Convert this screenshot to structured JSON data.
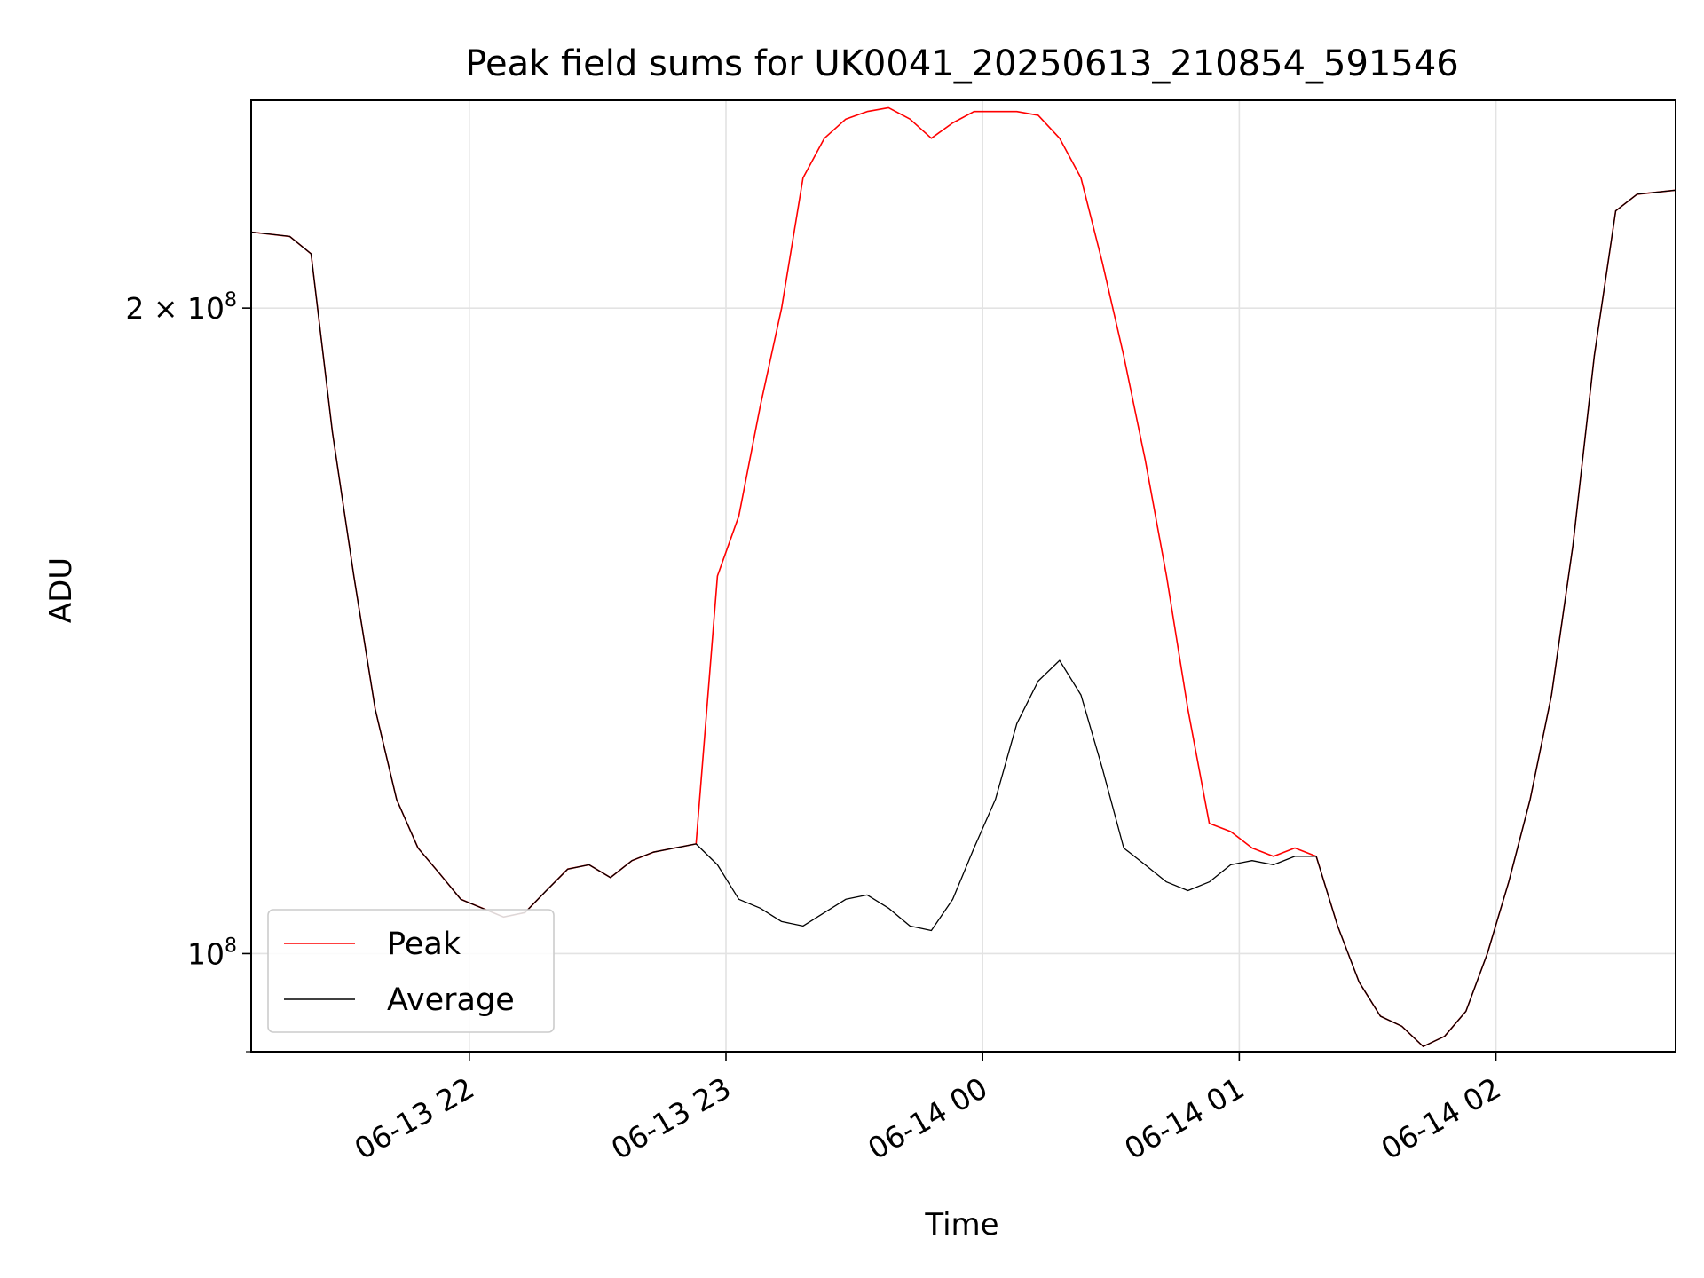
{
  "chart_data": {
    "type": "line",
    "title": "Peak field sums for UK0041_20250613_210854_591546",
    "xlabel": "Time",
    "ylabel": "ADU",
    "xlim": [
      "2025-06-13 21:09",
      "2025-06-14 02:42"
    ],
    "ylim": [
      90000000,
      250000000
    ],
    "yscale": "log",
    "grid": true,
    "legend_position": "lower-left",
    "x_ticks": [
      {
        "value": "2025-06-13 22:00",
        "label": "06-13 22"
      },
      {
        "value": "2025-06-13 23:00",
        "label": "06-13 23"
      },
      {
        "value": "2025-06-14 00:00",
        "label": "06-14 00"
      },
      {
        "value": "2025-06-14 01:00",
        "label": "06-14 01"
      },
      {
        "value": "2025-06-14 02:00",
        "label": "06-14 02"
      }
    ],
    "y_ticks": [
      {
        "value": 100000000,
        "label_base": "10",
        "label_exp": "8",
        "label_coef": ""
      },
      {
        "value": 200000000,
        "label_base": "10",
        "label_exp": "8",
        "label_coef": "2 × "
      }
    ],
    "series": [
      {
        "name": "Peak",
        "color": "#ff0000",
        "x": [
          "2025-06-13 21:09",
          "2025-06-13 21:18",
          "2025-06-13 21:23",
          "2025-06-13 21:28",
          "2025-06-13 21:33",
          "2025-06-13 21:38",
          "2025-06-13 21:43",
          "2025-06-13 21:48",
          "2025-06-13 21:53",
          "2025-06-13 21:58",
          "2025-06-13 22:03",
          "2025-06-13 22:08",
          "2025-06-13 22:13",
          "2025-06-13 22:18",
          "2025-06-13 22:23",
          "2025-06-13 22:28",
          "2025-06-13 22:33",
          "2025-06-13 22:38",
          "2025-06-13 22:43",
          "2025-06-13 22:48",
          "2025-06-13 22:53",
          "2025-06-13 22:58",
          "2025-06-13 23:03",
          "2025-06-13 23:08",
          "2025-06-13 23:13",
          "2025-06-13 23:18",
          "2025-06-13 23:23",
          "2025-06-13 23:28",
          "2025-06-13 23:33",
          "2025-06-13 23:38",
          "2025-06-13 23:43",
          "2025-06-13 23:48",
          "2025-06-13 23:53",
          "2025-06-13 23:58",
          "2025-06-14 00:03",
          "2025-06-14 00:08",
          "2025-06-14 00:13",
          "2025-06-14 00:18",
          "2025-06-14 00:23",
          "2025-06-14 00:28",
          "2025-06-14 00:33",
          "2025-06-14 00:38",
          "2025-06-14 00:43",
          "2025-06-14 00:48",
          "2025-06-14 00:53",
          "2025-06-14 00:58",
          "2025-06-14 01:03",
          "2025-06-14 01:08",
          "2025-06-14 01:13",
          "2025-06-14 01:18",
          "2025-06-14 01:23",
          "2025-06-14 01:28",
          "2025-06-14 01:33",
          "2025-06-14 01:38",
          "2025-06-14 01:43",
          "2025-06-14 01:48",
          "2025-06-14 01:53",
          "2025-06-14 01:58",
          "2025-06-14 02:03",
          "2025-06-14 02:08",
          "2025-06-14 02:13",
          "2025-06-14 02:18",
          "2025-06-14 02:23",
          "2025-06-14 02:28",
          "2025-06-14 02:33",
          "2025-06-14 02:42"
        ],
        "values": [
          217000000,
          216000000,
          212000000,
          175000000,
          150000000,
          130000000,
          118000000,
          112000000,
          109000000,
          106000000,
          105000000,
          104000000,
          104500000,
          107000000,
          109500000,
          110000000,
          108500000,
          110500000,
          111500000,
          112000000,
          112500000,
          150000000,
          160000000,
          180000000,
          200000000,
          230000000,
          240000000,
          245000000,
          247000000,
          248000000,
          245000000,
          240000000,
          244000000,
          247000000,
          247000000,
          247000000,
          246000000,
          240000000,
          230000000,
          210000000,
          190000000,
          170000000,
          150000000,
          130000000,
          115000000,
          114000000,
          112000000,
          111000000,
          112000000,
          111000000,
          103000000,
          97000000,
          93500000,
          92500000,
          90500000,
          91500000,
          94000000,
          100000000,
          108000000,
          118000000,
          132000000,
          155000000,
          190000000,
          222000000,
          226000000,
          227000000
        ]
      },
      {
        "name": "Average",
        "color": "#000000",
        "x": [
          "2025-06-13 21:09",
          "2025-06-13 21:18",
          "2025-06-13 21:23",
          "2025-06-13 21:28",
          "2025-06-13 21:33",
          "2025-06-13 21:38",
          "2025-06-13 21:43",
          "2025-06-13 21:48",
          "2025-06-13 21:53",
          "2025-06-13 21:58",
          "2025-06-13 22:03",
          "2025-06-13 22:08",
          "2025-06-13 22:13",
          "2025-06-13 22:18",
          "2025-06-13 22:23",
          "2025-06-13 22:28",
          "2025-06-13 22:33",
          "2025-06-13 22:38",
          "2025-06-13 22:43",
          "2025-06-13 22:48",
          "2025-06-13 22:53",
          "2025-06-13 22:58",
          "2025-06-13 23:03",
          "2025-06-13 23:08",
          "2025-06-13 23:13",
          "2025-06-13 23:18",
          "2025-06-13 23:23",
          "2025-06-13 23:28",
          "2025-06-13 23:33",
          "2025-06-13 23:38",
          "2025-06-13 23:43",
          "2025-06-13 23:48",
          "2025-06-13 23:53",
          "2025-06-13 23:58",
          "2025-06-14 00:03",
          "2025-06-14 00:08",
          "2025-06-14 00:13",
          "2025-06-14 00:18",
          "2025-06-14 00:23",
          "2025-06-14 00:28",
          "2025-06-14 00:33",
          "2025-06-14 00:38",
          "2025-06-14 00:43",
          "2025-06-14 00:48",
          "2025-06-14 00:53",
          "2025-06-14 00:58",
          "2025-06-14 01:03",
          "2025-06-14 01:08",
          "2025-06-14 01:13",
          "2025-06-14 01:18",
          "2025-06-14 01:23",
          "2025-06-14 01:28",
          "2025-06-14 01:33",
          "2025-06-14 01:38",
          "2025-06-14 01:43",
          "2025-06-14 01:48",
          "2025-06-14 01:53",
          "2025-06-14 01:58",
          "2025-06-14 02:03",
          "2025-06-14 02:08",
          "2025-06-14 02:13",
          "2025-06-14 02:18",
          "2025-06-14 02:23",
          "2025-06-14 02:28",
          "2025-06-14 02:33",
          "2025-06-14 02:42"
        ],
        "values": [
          217000000,
          216000000,
          212000000,
          175000000,
          150000000,
          130000000,
          118000000,
          112000000,
          109000000,
          106000000,
          105000000,
          104000000,
          104500000,
          107000000,
          109500000,
          110000000,
          108500000,
          110500000,
          111500000,
          112000000,
          112500000,
          110000000,
          106000000,
          105000000,
          103500000,
          103000000,
          104500000,
          106000000,
          106500000,
          105000000,
          103000000,
          102500000,
          106000000,
          112000000,
          118000000,
          128000000,
          134000000,
          137000000,
          132000000,
          122000000,
          112000000,
          110000000,
          108000000,
          107000000,
          108000000,
          110000000,
          110500000,
          110000000,
          111000000,
          111000000,
          103000000,
          97000000,
          93500000,
          92500000,
          90500000,
          91500000,
          94000000,
          100000000,
          108000000,
          118000000,
          132000000,
          155000000,
          190000000,
          222000000,
          226000000,
          227000000
        ]
      }
    ]
  }
}
